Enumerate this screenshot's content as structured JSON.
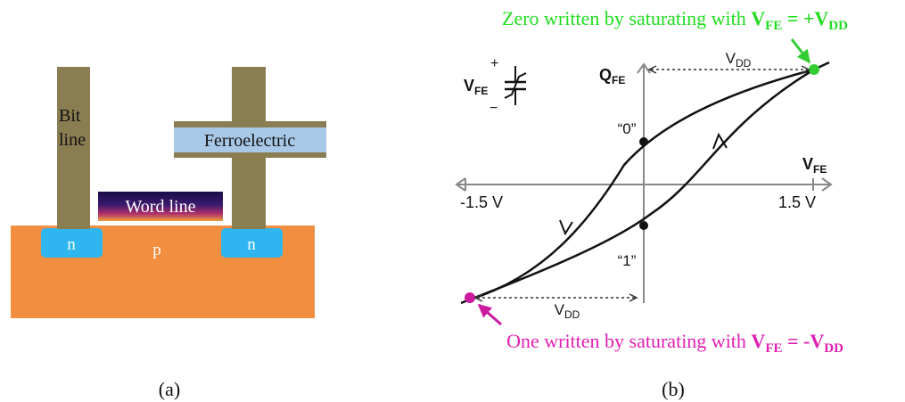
{
  "panel_a": {
    "caption": "(a)",
    "bit_line_label_1": "Bit",
    "bit_line_label_2": "line",
    "ferroelectric_label": "Ferroelectric",
    "word_line_label": "Word line",
    "n_left_label": "n",
    "n_right_label": "n",
    "p_label": "p",
    "colors": {
      "substrate": "#f28e40",
      "n_region": "#2fb6f0",
      "metal": "#8a7d52",
      "ferroelectric": "#a7c8e6"
    }
  },
  "panel_b": {
    "caption": "(b)",
    "top_annotation": {
      "prefix": "Zero written by saturating with ",
      "v": "V",
      "sub1": "FE",
      "eq": " = +",
      "v2": "V",
      "sub2": "DD"
    },
    "bottom_annotation": {
      "prefix": "One written by saturating with ",
      "v": "V",
      "sub1": "FE",
      "eq": " = -",
      "v2": "V",
      "sub2": "DD"
    },
    "symbol_v": "V",
    "symbol_sub": "FE",
    "symbol_plus": "+",
    "symbol_minus": "−",
    "y_axis_q": "Q",
    "y_axis_sub": "FE",
    "x_axis_v": "V",
    "x_axis_sub": "FE",
    "tick_neg": "-1.5 V",
    "tick_pos": "1.5 V",
    "vdd_top_v": "V",
    "vdd_top_sub": "DD",
    "vdd_bottom_v": "V",
    "vdd_bottom_sub": "DD",
    "state_zero": "“0”",
    "state_one": "“1”",
    "colors": {
      "top_point": "#33cc33",
      "bottom_point": "#cc1aa0",
      "top_text": "#22dd22",
      "bottom_text": "#e020b0"
    }
  }
}
